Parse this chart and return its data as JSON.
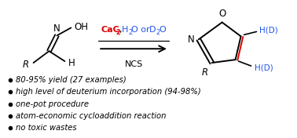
{
  "bg_color": "#ffffff",
  "bullet_items": [
    "80-95% yield (27 examples)",
    "high level of deuterium incorporation (94-98%)",
    "one-pot procedure",
    "atom-economic cycloaddition reaction",
    "no toxic wastes"
  ],
  "bullet_fontsize": 7.2,
  "red": "#dd0000",
  "blue": "#2255ee",
  "black": "#000000"
}
